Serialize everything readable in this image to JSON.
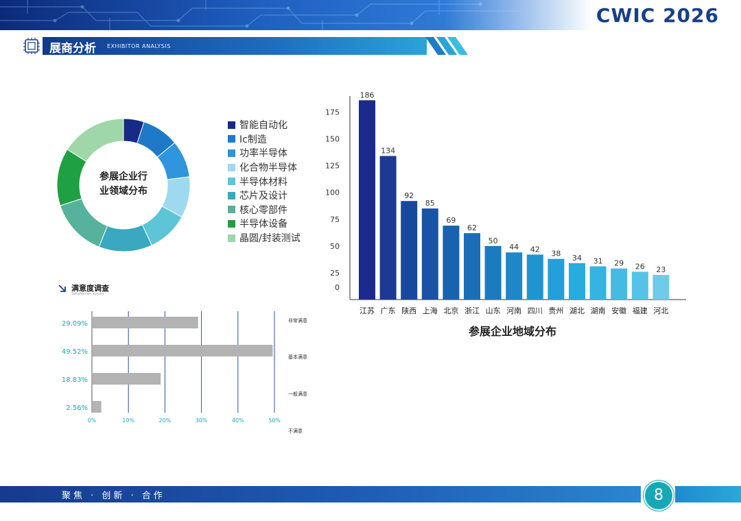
{
  "header": {
    "brand": "CWIC 2026",
    "section_title": "展商分析",
    "section_subtitle": "EXHIBITOR ANALYSIS"
  },
  "colors": {
    "primary": "#163f8c",
    "accent": "#17a8b8"
  },
  "chart_data": [
    {
      "type": "pie",
      "title": "参展企业行业领域分布",
      "center_label_lines": [
        "参展企业行",
        "业领域分布"
      ],
      "categories": [
        "智能自动化",
        "Ic制造",
        "功率半导体",
        "化合物半导体",
        "半导体材料",
        "芯片及设计",
        "核心零部件",
        "半导体设备",
        "晶圆/封装测试"
      ],
      "values": [
        5,
        9,
        9,
        10,
        10,
        13,
        14,
        14,
        16
      ],
      "colors": [
        "#172a86",
        "#1e79c8",
        "#2f95dc",
        "#9ed9ef",
        "#5ec4d8",
        "#3aa8c0",
        "#56b29a",
        "#1fa042",
        "#9fd7a8"
      ],
      "legend_position": "right"
    },
    {
      "type": "bar",
      "title": "参展企业地域分布",
      "categories": [
        "江苏",
        "广东",
        "陕西",
        "上海",
        "北京",
        "浙江",
        "山东",
        "河南",
        "四川",
        "贵州",
        "湖北",
        "湖南",
        "安徽",
        "福建",
        "河北"
      ],
      "values": [
        186,
        134,
        92,
        85,
        69,
        62,
        50,
        44,
        42,
        38,
        34,
        31,
        29,
        26,
        23
      ],
      "yticks": [
        0,
        25,
        50,
        75,
        100,
        125,
        150,
        175
      ],
      "ylim": [
        0,
        190
      ],
      "colors": [
        "#1b2a8c",
        "#1c3994",
        "#18489e",
        "#1853a6",
        "#1862af",
        "#1a6eb8",
        "#1b7bc1",
        "#1d87ca",
        "#1f94d2",
        "#23a0da",
        "#2aabde",
        "#35b3e1",
        "#45bbe4",
        "#55c2e7",
        "#6ecbe9"
      ],
      "grid": false,
      "legend": "none"
    },
    {
      "type": "bar",
      "orientation": "horizontal",
      "title": "满意度调查",
      "subtitle": "Satisfaction survey",
      "categories": [
        "非常满意",
        "基本满意",
        "一般满意",
        "不满意"
      ],
      "values": [
        29.09,
        49.52,
        18.83,
        2.56
      ],
      "value_labels": [
        "29.09%",
        "49.52%",
        "18.83%",
        "2.56%"
      ],
      "xticks": [
        "0%",
        "10%",
        "20%",
        "30%",
        "40%",
        "50%"
      ],
      "xlim": [
        0,
        50
      ],
      "grid": true,
      "bar_color": "#b3b3b3",
      "label_color": "#17a8b8"
    }
  ],
  "footer": {
    "slogan": "聚焦 · 创新 · 合作",
    "page_number": "8"
  }
}
